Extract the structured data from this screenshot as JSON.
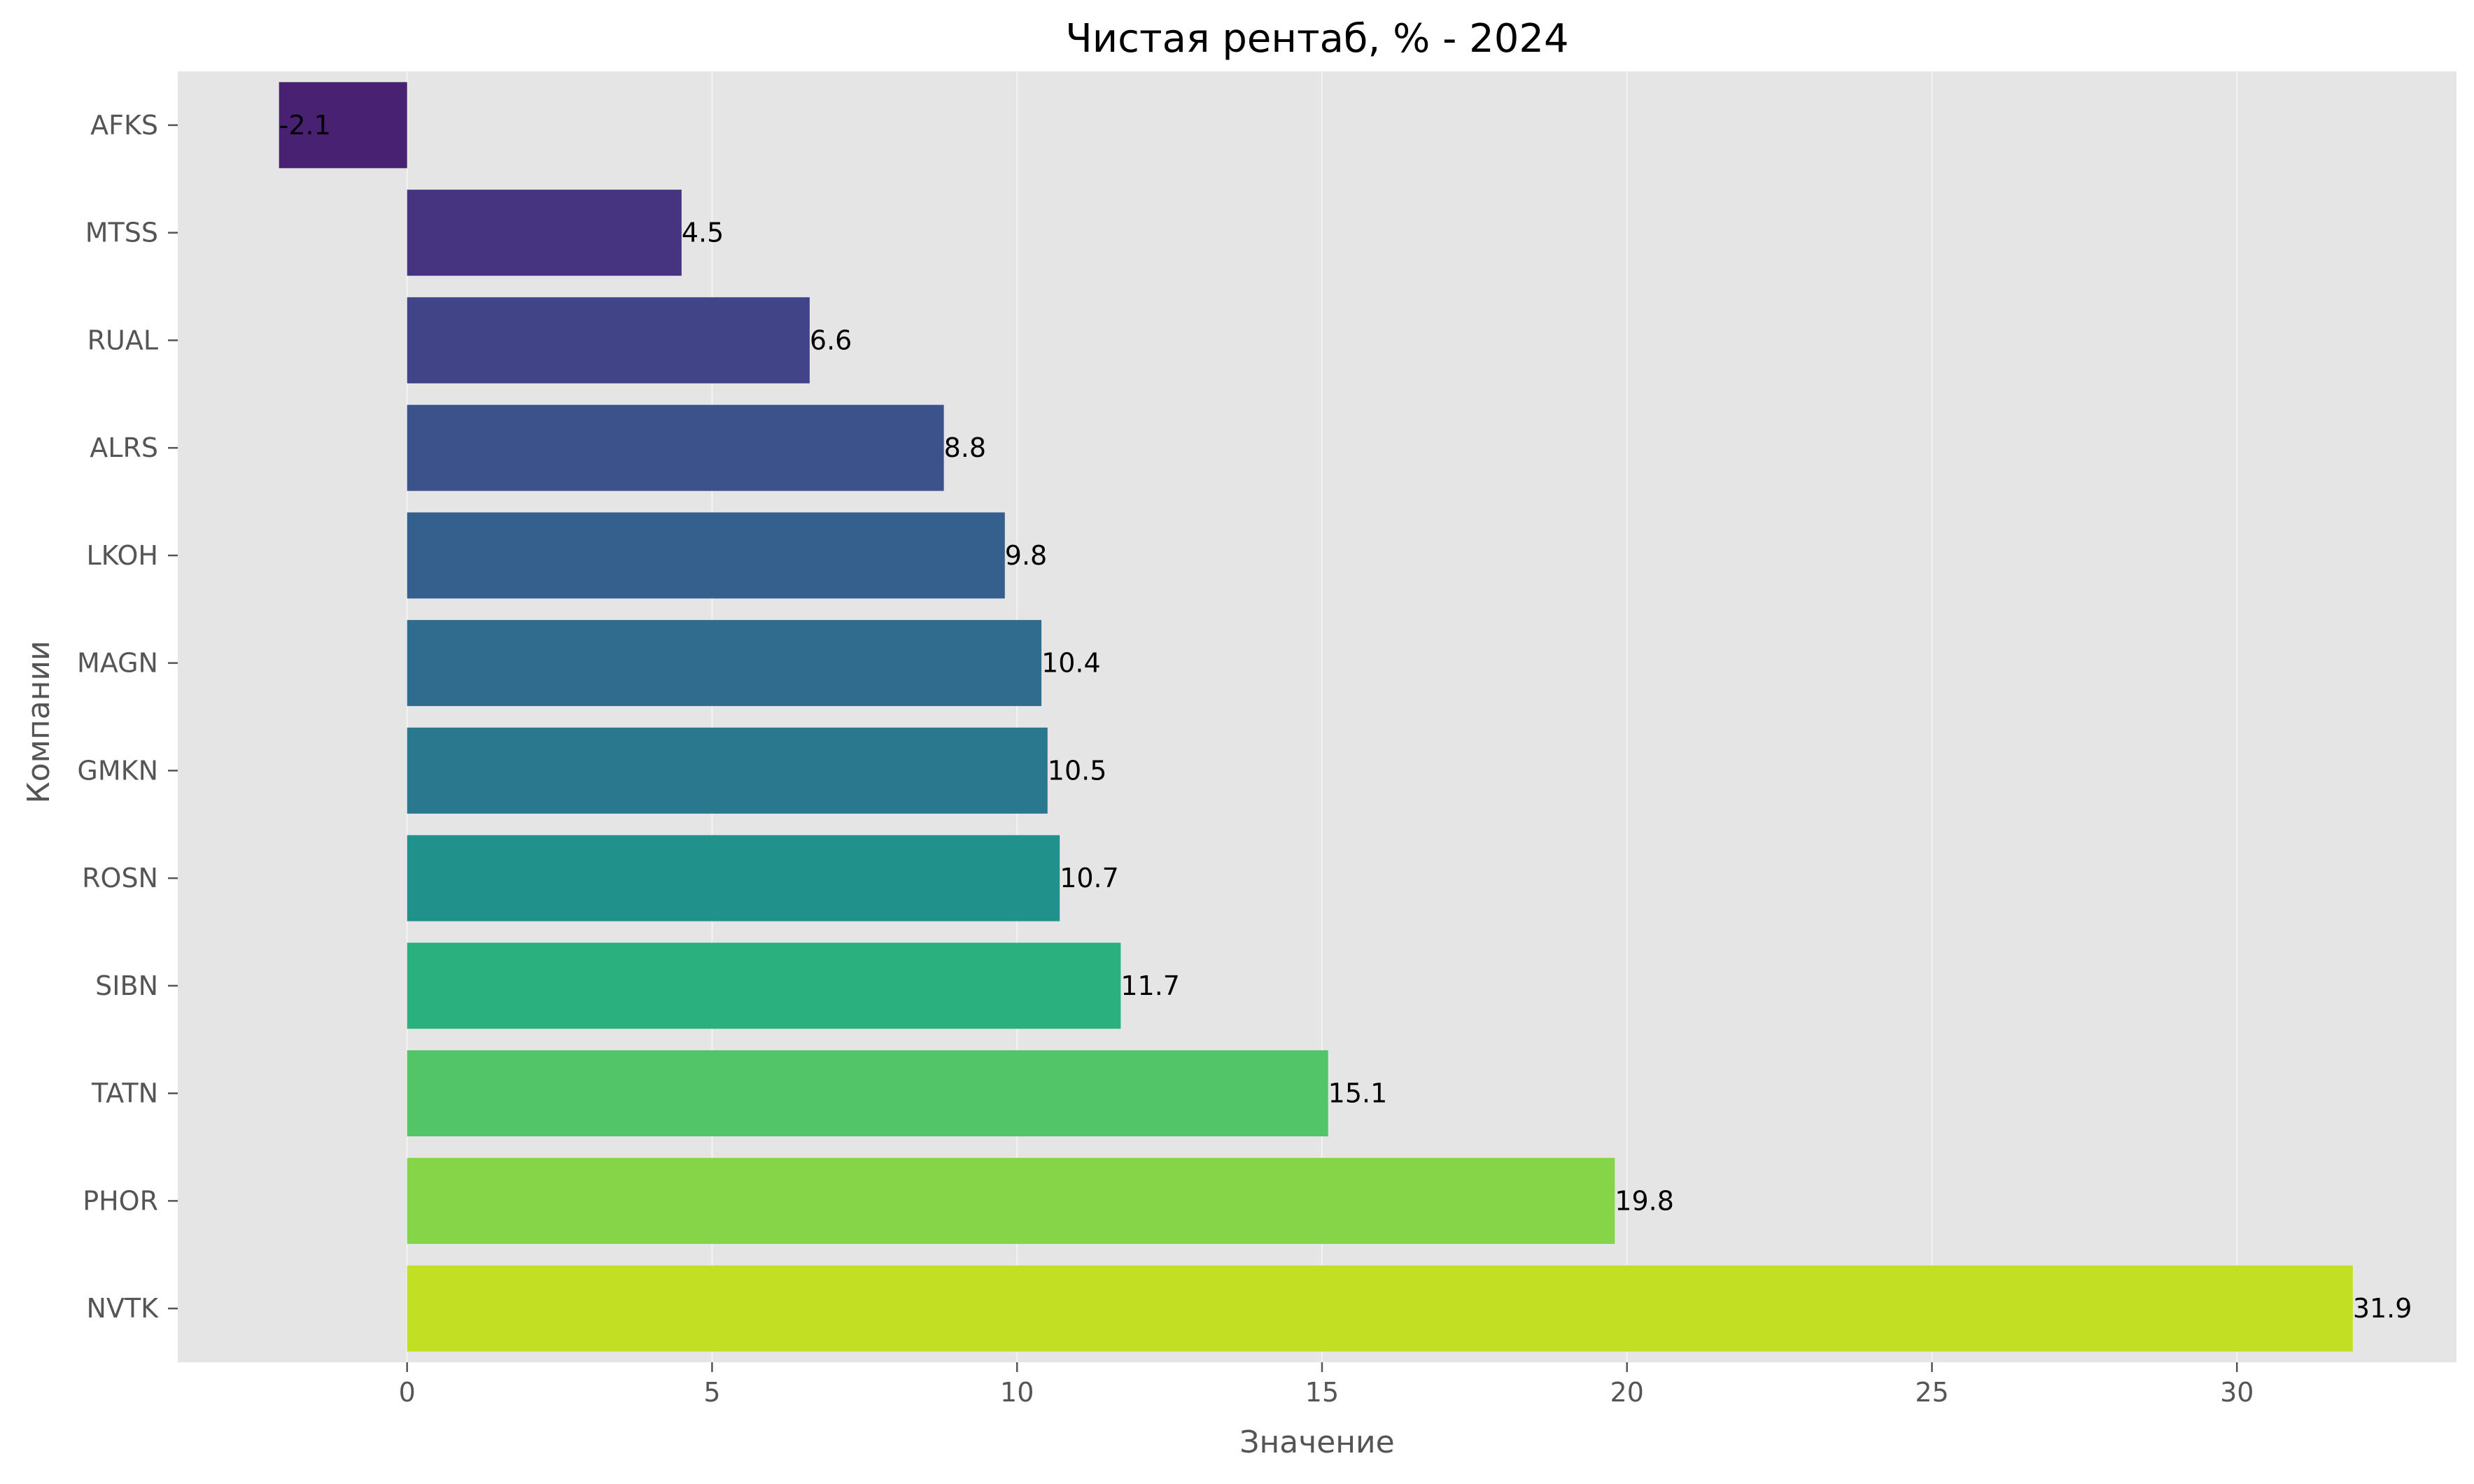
{
  "chart_data": {
    "type": "bar",
    "orientation": "horizontal",
    "title": "Чистая рентаб, % - 2024",
    "xlabel": "Значение",
    "ylabel": "Компании",
    "categories": [
      "AFKS",
      "MTSS",
      "RUAL",
      "ALRS",
      "LKOH",
      "MAGN",
      "GMKN",
      "ROSN",
      "SIBN",
      "TATN",
      "PHOR",
      "NVTK"
    ],
    "values": [
      -2.1,
      4.5,
      6.6,
      8.8,
      9.8,
      10.4,
      10.5,
      10.7,
      11.7,
      15.1,
      19.8,
      31.9
    ],
    "data_labels": [
      "-2.1",
      "4.5",
      "6.6",
      "8.8",
      "9.8",
      "10.4",
      "10.5",
      "10.7",
      "11.7",
      "15.1",
      "19.8",
      "31.9"
    ],
    "xlim": [
      -3.76,
      33.6
    ],
    "xticks": [
      0,
      5,
      10,
      15,
      20,
      25,
      30
    ],
    "xtick_labels": [
      "0",
      "5",
      "10",
      "15",
      "20",
      "25",
      "30"
    ],
    "grid": true,
    "colors": {
      "plot_background": "#e5e5e5",
      "bars": [
        "#482173",
        "#463480",
        "#414487",
        "#3b528b",
        "#355f8d",
        "#2f6c8e",
        "#2a788e",
        "#21918c",
        "#2ab07f",
        "#52c569",
        "#86d549",
        "#c2df23"
      ]
    }
  }
}
